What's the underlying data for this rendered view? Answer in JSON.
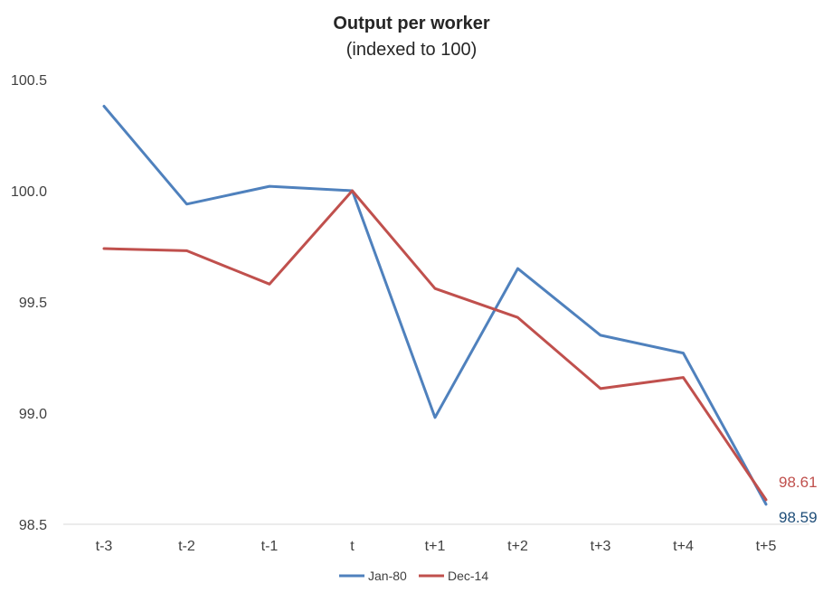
{
  "chart_data": {
    "type": "line",
    "title": "Output per worker",
    "subtitle": "(indexed to 100)",
    "xlabel": "",
    "ylabel": "",
    "categories": [
      "t-3",
      "t-2",
      "t-1",
      "t",
      "t+1",
      "t+2",
      "t+3",
      "t+4",
      "t+5"
    ],
    "ylim": [
      98.5,
      100.5
    ],
    "yticks": [
      "98.5",
      "99.0",
      "99.5",
      "100.0",
      "100.5"
    ],
    "grid": false,
    "legend_position": "bottom",
    "series": [
      {
        "name": "Jan-80",
        "color": "#4f81bd",
        "values": [
          100.38,
          99.94,
          100.02,
          100.0,
          98.98,
          99.65,
          99.35,
          99.27,
          98.59
        ],
        "end_label": "98.59"
      },
      {
        "name": "Dec-14",
        "color": "#c0504d",
        "values": [
          99.74,
          99.73,
          99.58,
          100.0,
          99.56,
          99.43,
          99.11,
          99.16,
          98.61
        ],
        "end_label": "98.61"
      }
    ]
  }
}
